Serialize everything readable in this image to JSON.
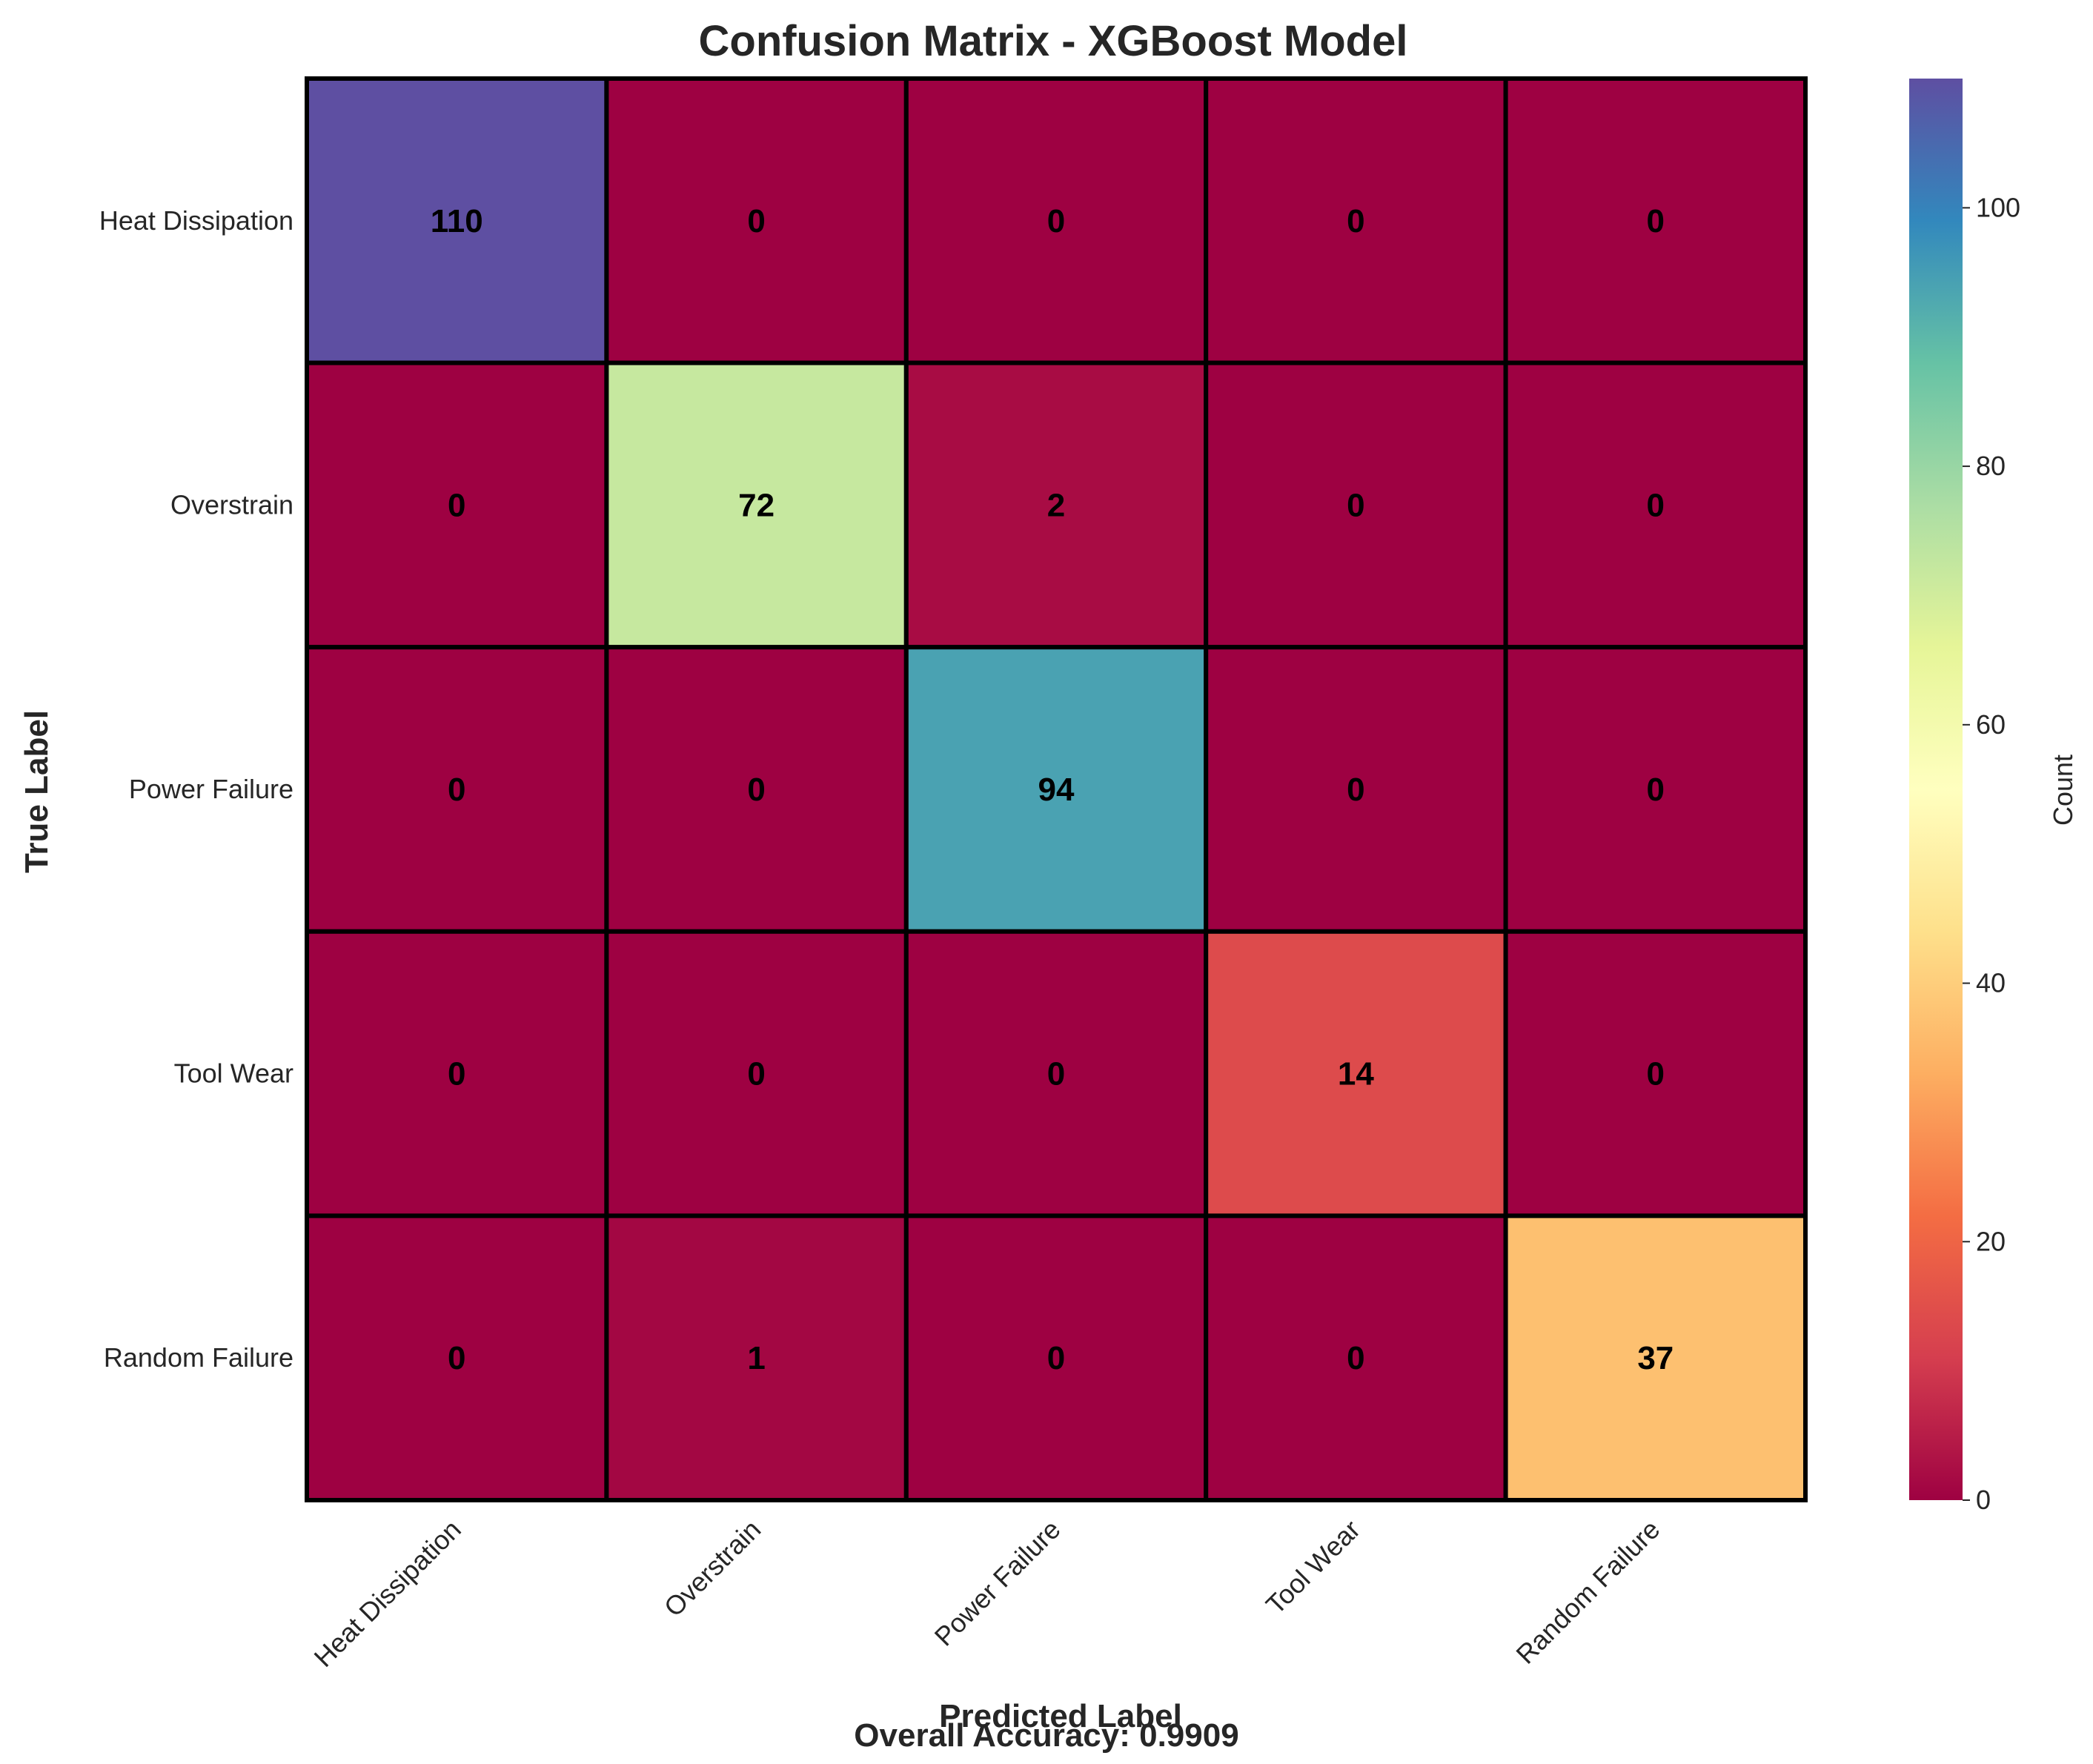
{
  "chart_data": {
    "type": "heatmap",
    "title": "Confusion Matrix - XGBoost Model",
    "xlabel": "Predicted Label",
    "ylabel": "True Label",
    "x_categories": [
      "Heat Dissipation",
      "Overstrain",
      "Power Failure",
      "Tool Wear",
      "Random Failure"
    ],
    "y_categories": [
      "Heat Dissipation",
      "Overstrain",
      "Power Failure",
      "Tool Wear",
      "Random Failure"
    ],
    "matrix": [
      [
        110,
        0,
        0,
        0,
        0
      ],
      [
        0,
        72,
        2,
        0,
        0
      ],
      [
        0,
        0,
        94,
        0,
        0
      ],
      [
        0,
        0,
        0,
        14,
        0
      ],
      [
        0,
        1,
        0,
        0,
        37
      ]
    ],
    "colorbar": {
      "label": "Count",
      "range": [
        0,
        110
      ],
      "ticks": [
        0,
        20,
        40,
        60,
        80,
        100
      ],
      "colormap": "Spectral"
    },
    "cell_border_color": "#000000",
    "annotation": "Overall Accuracy: 0.9909"
  }
}
